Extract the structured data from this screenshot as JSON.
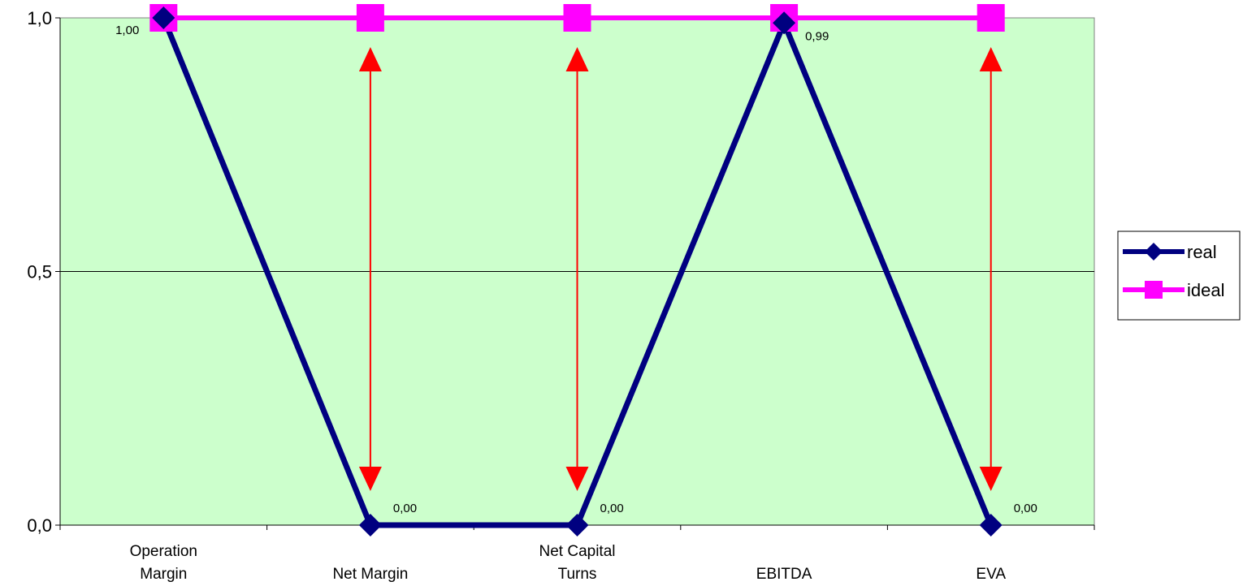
{
  "chart_data": {
    "type": "line",
    "categories": [
      [
        "Operation",
        "Margin"
      ],
      [
        "Net Margin"
      ],
      [
        "Net Capital",
        "Turns"
      ],
      [
        "EBITDA"
      ],
      [
        "EVA"
      ]
    ],
    "series": [
      {
        "name": "real",
        "values": [
          1.0,
          0.0,
          0.0,
          0.99,
          0.0
        ],
        "color": "#000080",
        "marker": "diamond"
      },
      {
        "name": "ideal",
        "values": [
          1.0,
          1.0,
          1.0,
          1.0,
          1.0
        ],
        "color": "#FF00FF",
        "marker": "square"
      }
    ],
    "data_labels": [
      {
        "category_index": 0,
        "text": "1,00"
      },
      {
        "category_index": 1,
        "text": "0,00"
      },
      {
        "category_index": 2,
        "text": "0,00"
      },
      {
        "category_index": 3,
        "text": "0,99"
      },
      {
        "category_index": 4,
        "text": "0,00"
      }
    ],
    "gap_arrows": [
      1,
      2,
      4
    ],
    "y_ticks": [
      "0,0",
      "0,5",
      "1,0"
    ],
    "y_tick_values": [
      0,
      0.5,
      1.0
    ],
    "ylim": [
      0,
      1.0
    ],
    "grid": true,
    "legend_position": "right",
    "colors": {
      "plot_background": "#CCFFCC",
      "arrow": "#FF0000",
      "gridline": "#000000"
    }
  }
}
